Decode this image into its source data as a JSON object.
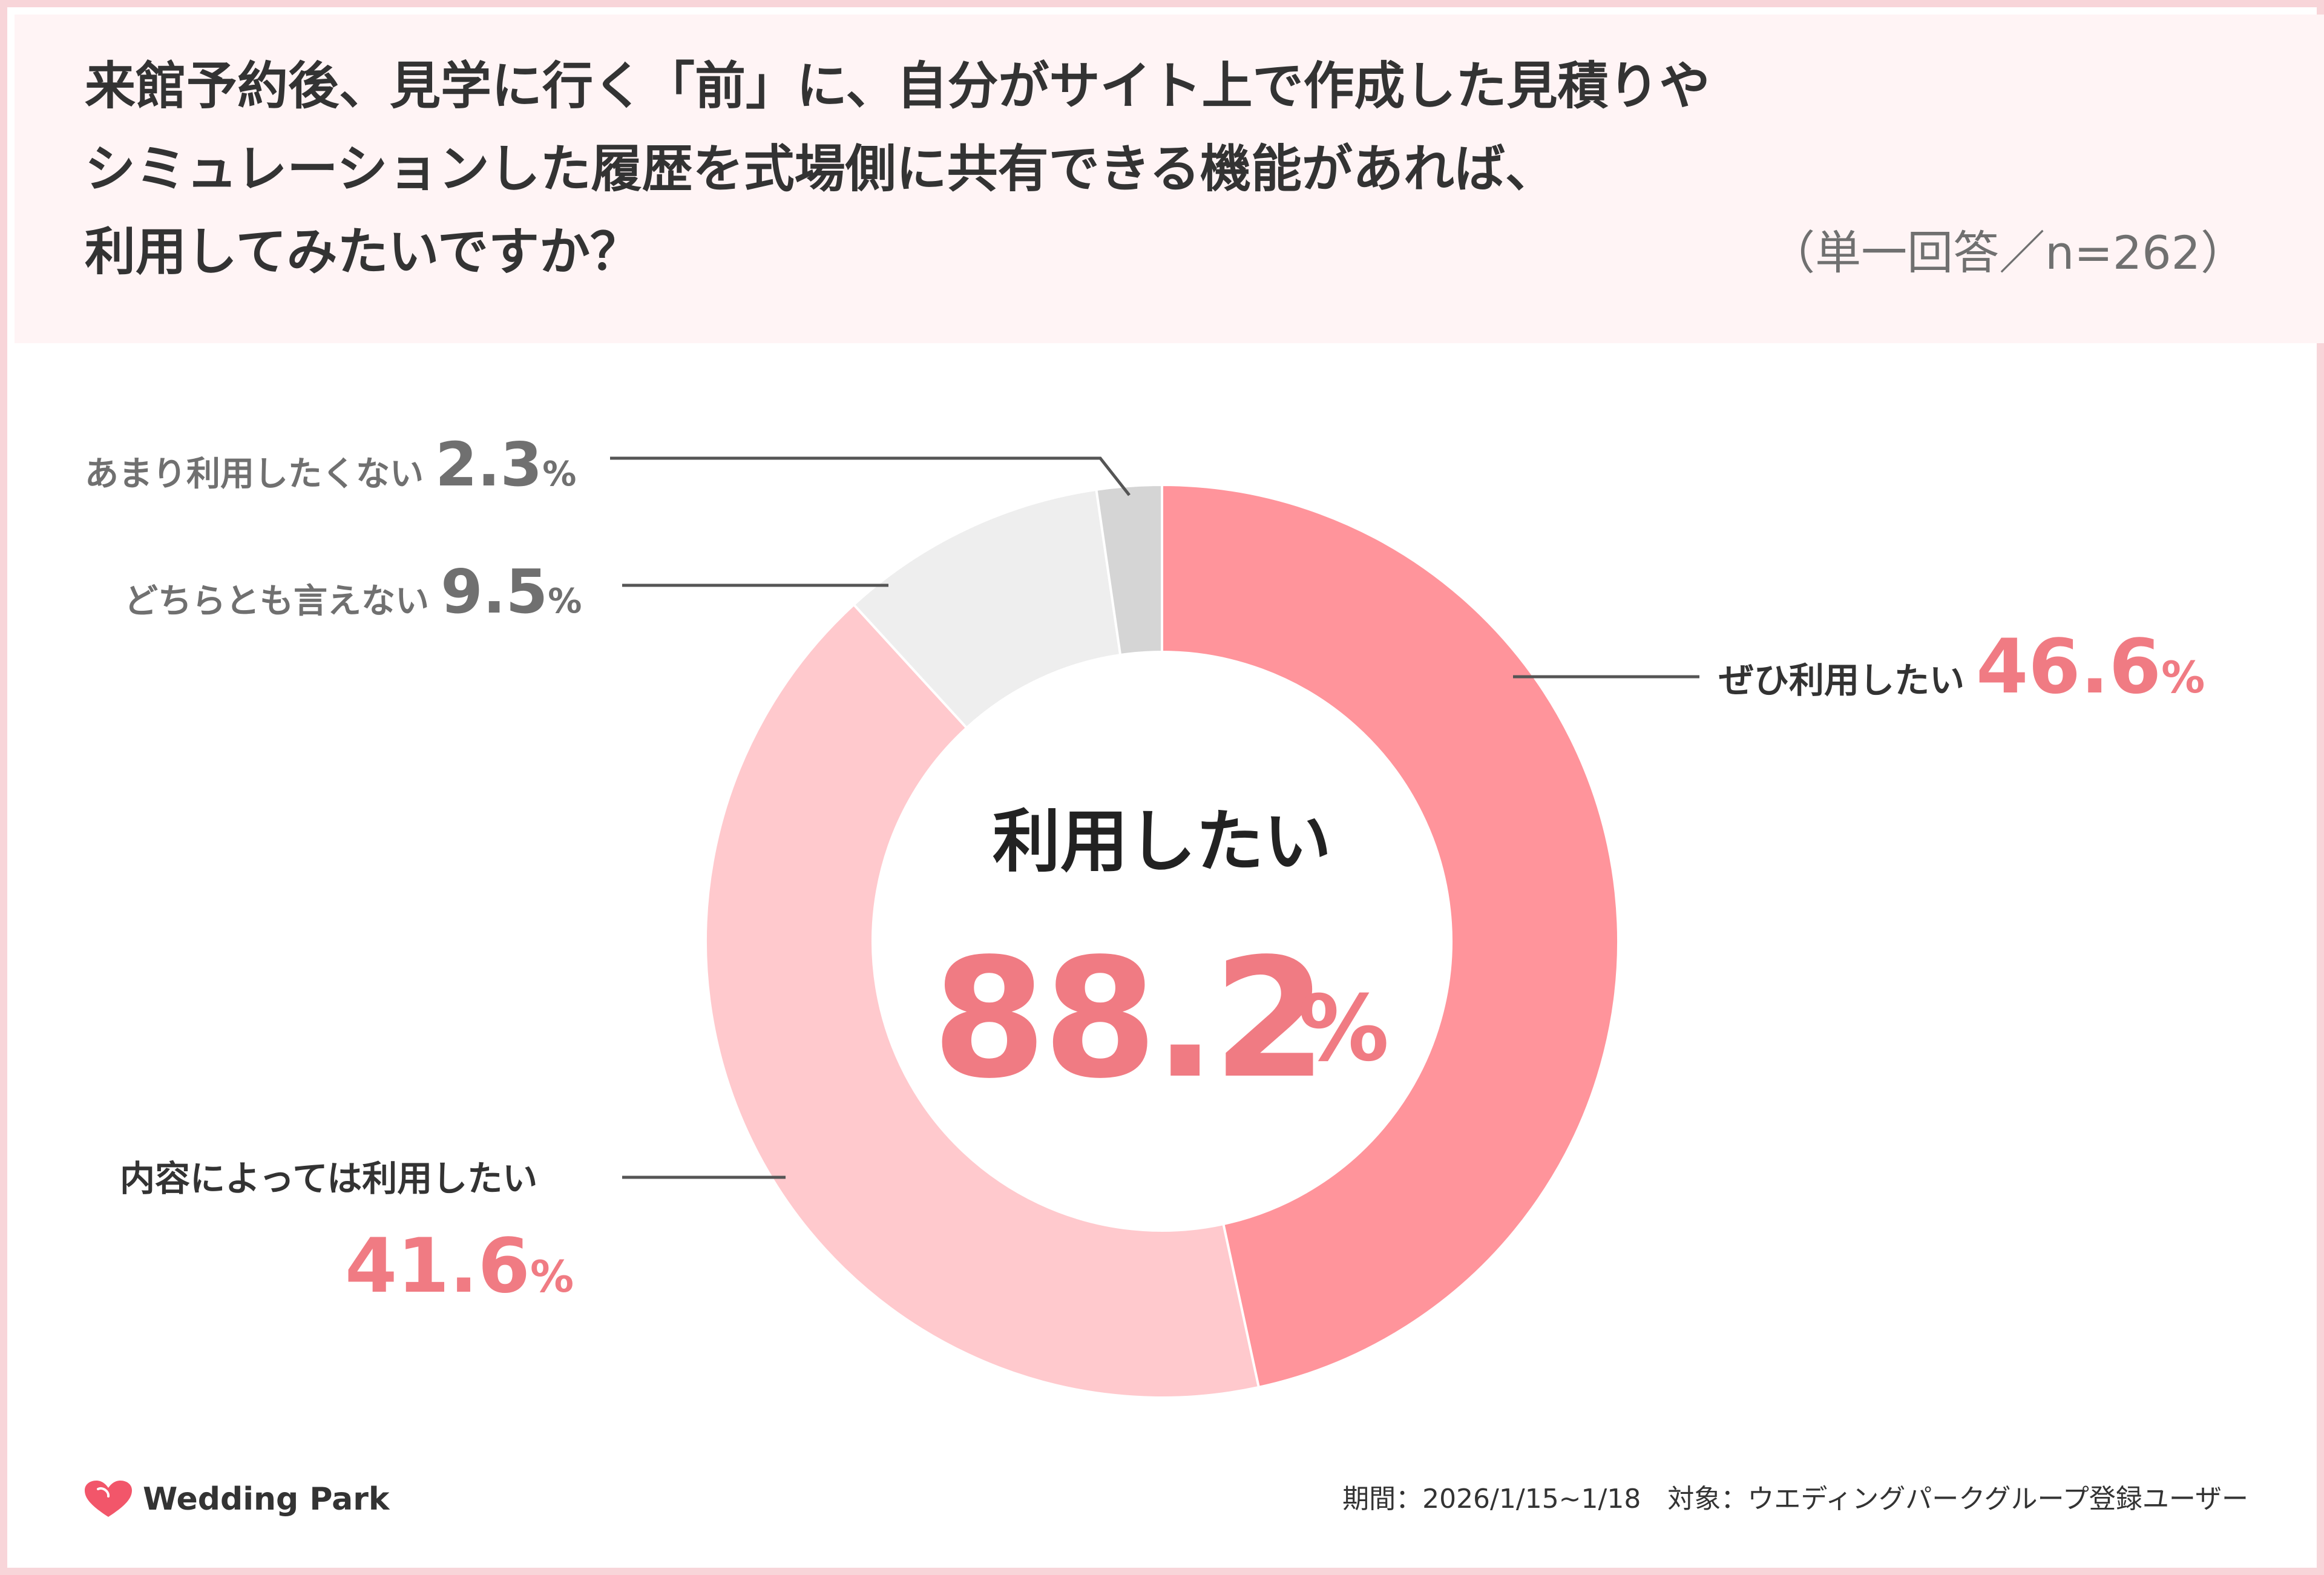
{
  "title": {
    "line1": "来館予約後、見学に行く「前」に、自分がサイト上で作成した見積りや",
    "line2": "シミュレーションした履歴を式場側に共有できる機能があれば、",
    "line3": "利用してみたいですか？",
    "note": "（単一回答／n=262）"
  },
  "center": {
    "label": "利用したい",
    "value": "88.2",
    "unit": "%"
  },
  "labels": {
    "want_label": "ぜひ利用したい",
    "want_value": "46.6",
    "depends_label": "内容によっては利用したい",
    "depends_value": "41.6",
    "neutral_label": "どちらとも言えない",
    "neutral_value": "9.5",
    "not_label": "あまり利用したくない",
    "not_value": "2.3",
    "unit": "%"
  },
  "footer": {
    "brand": "Wedding Park",
    "note": "期間：2026/1/15~1/18　対象：ウエディングパークグループ登録ユーザー"
  },
  "colors": {
    "want": "#ff949b",
    "depends": "#ffc9cd",
    "neutral": "#eeeeee",
    "not": "#d5d5d5",
    "accent": "#f07b83",
    "frame": "#f8d5d9",
    "header_bg": "#fff4f5"
  },
  "chart_data": {
    "type": "pie",
    "variant": "donut",
    "categories": [
      "ぜひ利用したい",
      "内容によっては利用したい",
      "どちらとも言えない",
      "あまり利用したくない"
    ],
    "values": [
      46.6,
      41.6,
      9.5,
      2.3
    ],
    "unit": "%",
    "center_total": 88.2,
    "start": "top",
    "direction": "clockwise"
  }
}
